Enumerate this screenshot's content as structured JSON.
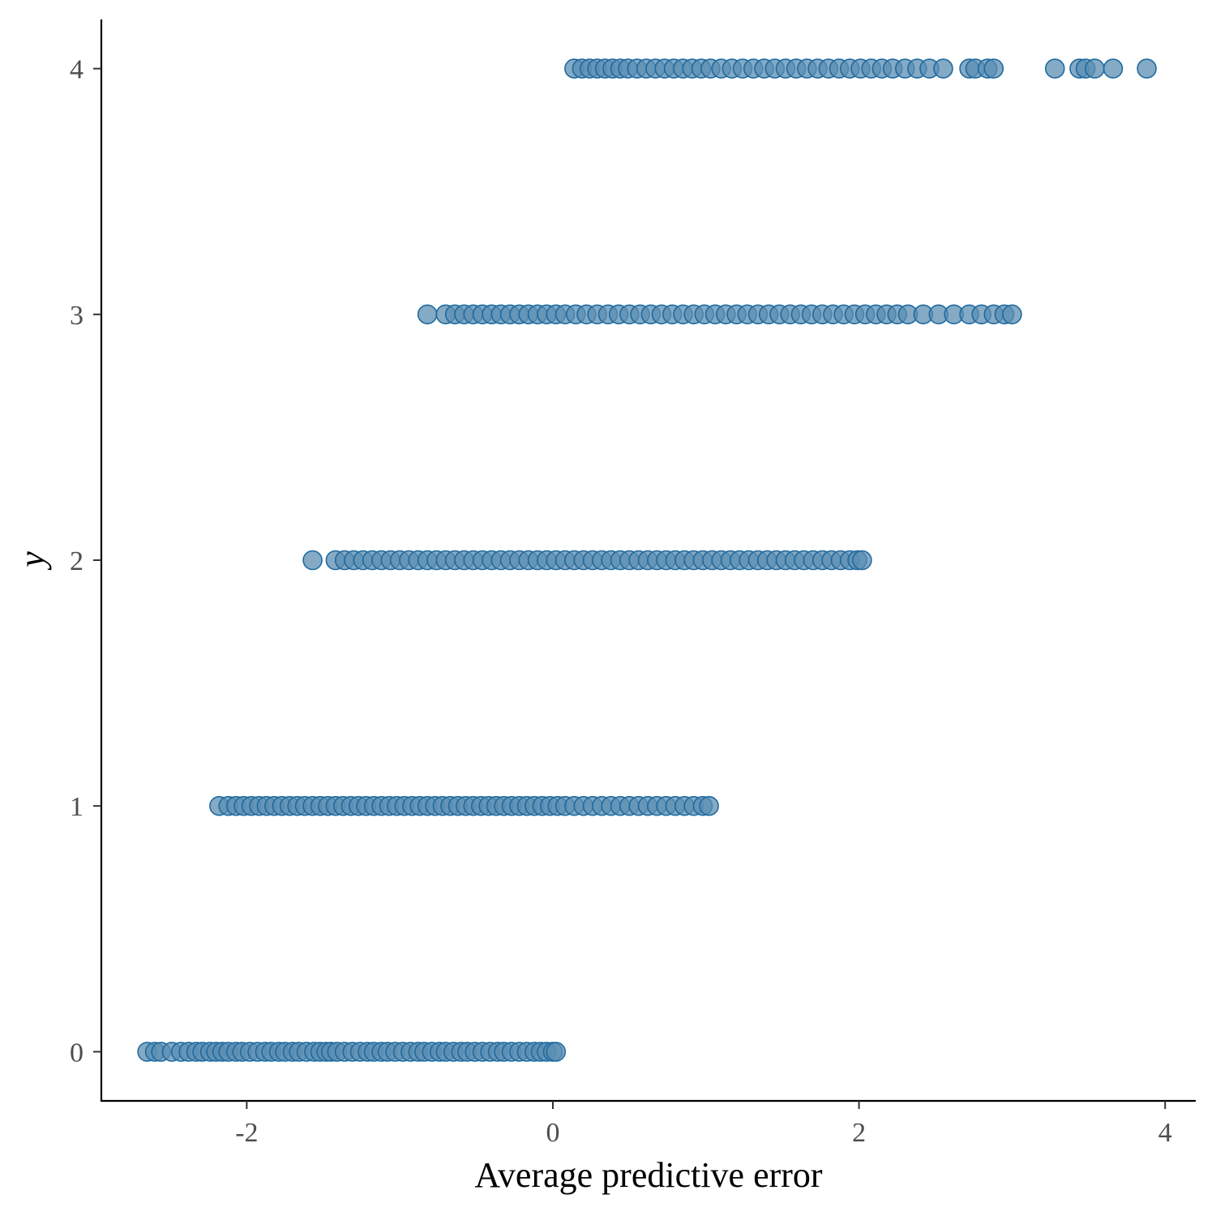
{
  "chart_data": {
    "type": "scatter",
    "title": "",
    "xlabel": "Average predictive error",
    "ylabel": "y",
    "xlim": [
      -2.95,
      4.2
    ],
    "ylim": [
      -0.2,
      4.2
    ],
    "xticks": [
      -2,
      0,
      2,
      4
    ],
    "xtick_labels": [
      "-2",
      "0",
      "2",
      "4"
    ],
    "yticks": [
      0,
      1,
      2,
      3,
      4
    ],
    "ytick_labels": [
      "0",
      "1",
      "2",
      "3",
      "4"
    ],
    "grid": false,
    "legend": "none",
    "colors": {
      "point_fill": "#5b8db1",
      "point_stroke": "#1f6aa0",
      "axis": "#000000",
      "tick_label": "#4d4d4d"
    },
    "series": [
      {
        "y": 0,
        "x": [
          -2.65,
          -2.6,
          -2.56,
          -2.49,
          -2.43,
          -2.38,
          -2.33,
          -2.29,
          -2.24,
          -2.2,
          -2.16,
          -2.12,
          -2.07,
          -2.03,
          -1.98,
          -1.93,
          -1.88,
          -1.84,
          -1.79,
          -1.75,
          -1.7,
          -1.66,
          -1.61,
          -1.56,
          -1.52,
          -1.48,
          -1.45,
          -1.41,
          -1.36,
          -1.31,
          -1.26,
          -1.21,
          -1.17,
          -1.12,
          -1.08,
          -1.03,
          -0.98,
          -0.93,
          -0.88,
          -0.84,
          -0.79,
          -0.74,
          -0.7,
          -0.65,
          -0.6,
          -0.56,
          -0.51,
          -0.46,
          -0.41,
          -0.36,
          -0.32,
          -0.27,
          -0.22,
          -0.17,
          -0.12,
          -0.08,
          -0.04,
          0.0,
          0.02
        ]
      },
      {
        "y": 1,
        "x": [
          -2.18,
          -2.12,
          -2.07,
          -2.02,
          -1.97,
          -1.92,
          -1.87,
          -1.82,
          -1.77,
          -1.72,
          -1.67,
          -1.62,
          -1.57,
          -1.52,
          -1.47,
          -1.42,
          -1.37,
          -1.32,
          -1.27,
          -1.22,
          -1.17,
          -1.12,
          -1.07,
          -1.02,
          -0.97,
          -0.92,
          -0.87,
          -0.82,
          -0.77,
          -0.72,
          -0.67,
          -0.62,
          -0.57,
          -0.52,
          -0.47,
          -0.42,
          -0.37,
          -0.32,
          -0.27,
          -0.22,
          -0.17,
          -0.12,
          -0.07,
          -0.02,
          0.03,
          0.08,
          0.14,
          0.2,
          0.26,
          0.32,
          0.38,
          0.44,
          0.5,
          0.56,
          0.62,
          0.68,
          0.74,
          0.8,
          0.86,
          0.92,
          0.98,
          1.02
        ]
      },
      {
        "y": 2,
        "x": [
          -1.57,
          -1.42,
          -1.36,
          -1.3,
          -1.24,
          -1.18,
          -1.12,
          -1.06,
          -1.0,
          -0.94,
          -0.88,
          -0.82,
          -0.76,
          -0.7,
          -0.64,
          -0.58,
          -0.52,
          -0.46,
          -0.4,
          -0.34,
          -0.28,
          -0.22,
          -0.16,
          -0.1,
          -0.04,
          0.02,
          0.08,
          0.14,
          0.2,
          0.26,
          0.32,
          0.38,
          0.44,
          0.5,
          0.56,
          0.62,
          0.68,
          0.74,
          0.8,
          0.86,
          0.92,
          0.98,
          1.04,
          1.1,
          1.16,
          1.22,
          1.28,
          1.34,
          1.4,
          1.46,
          1.52,
          1.58,
          1.64,
          1.7,
          1.76,
          1.82,
          1.88,
          1.94,
          1.99,
          2.02
        ]
      },
      {
        "y": 3,
        "x": [
          -0.82,
          -0.7,
          -0.64,
          -0.58,
          -0.52,
          -0.46,
          -0.4,
          -0.34,
          -0.28,
          -0.22,
          -0.16,
          -0.1,
          -0.04,
          0.02,
          0.08,
          0.15,
          0.22,
          0.29,
          0.36,
          0.43,
          0.5,
          0.57,
          0.64,
          0.71,
          0.78,
          0.85,
          0.92,
          0.99,
          1.06,
          1.13,
          1.2,
          1.27,
          1.34,
          1.41,
          1.48,
          1.55,
          1.62,
          1.69,
          1.76,
          1.83,
          1.9,
          1.97,
          2.04,
          2.11,
          2.18,
          2.25,
          2.32,
          2.42,
          2.52,
          2.62,
          2.72,
          2.8,
          2.88,
          2.95,
          3.0
        ]
      },
      {
        "y": 4,
        "x": [
          0.14,
          0.19,
          0.24,
          0.29,
          0.34,
          0.39,
          0.44,
          0.49,
          0.55,
          0.61,
          0.67,
          0.73,
          0.79,
          0.85,
          0.91,
          0.97,
          1.03,
          1.1,
          1.17,
          1.24,
          1.31,
          1.38,
          1.45,
          1.52,
          1.59,
          1.66,
          1.73,
          1.8,
          1.87,
          1.94,
          2.01,
          2.08,
          2.15,
          2.22,
          2.3,
          2.38,
          2.46,
          2.55,
          2.72,
          2.76,
          2.84,
          2.88,
          3.28,
          3.44,
          3.48,
          3.54,
          3.66,
          3.88
        ]
      }
    ]
  }
}
